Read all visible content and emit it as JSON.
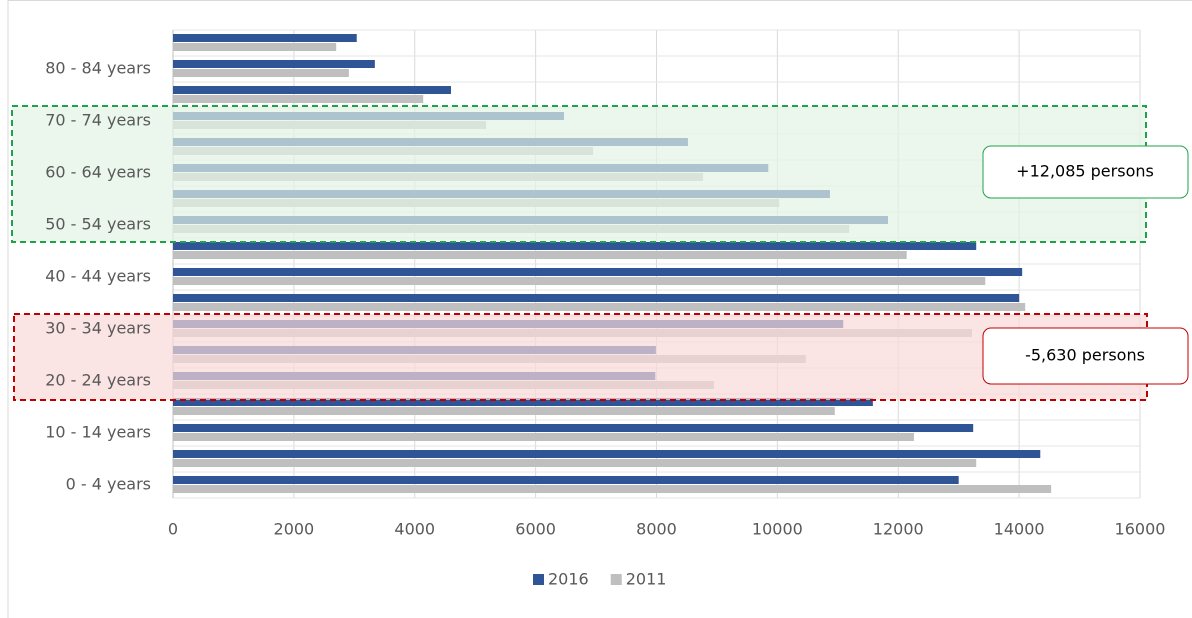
{
  "chart_data": {
    "type": "bar",
    "orientation": "horizontal",
    "categories": [
      "0 - 4 years",
      null,
      "10 - 14 years",
      null,
      "20 - 24 years",
      null,
      "30 - 34 years",
      null,
      "40 - 44 years",
      null,
      "50 - 54 years",
      null,
      "60 - 64 years",
      null,
      "70 - 74 years",
      null,
      "80 - 84 years",
      null
    ],
    "series": [
      {
        "name": "2016",
        "color": "#2f5597",
        "values": [
          13000,
          14350,
          13240,
          11580,
          7980,
          7990,
          11090,
          14000,
          14050,
          13290,
          11830,
          10870,
          9850,
          8520,
          6470,
          4600,
          3340,
          3040
        ]
      },
      {
        "name": "2011",
        "color": "#bfbfbf",
        "values": [
          14530,
          13290,
          12260,
          10950,
          8950,
          10470,
          13220,
          14100,
          13440,
          12140,
          11190,
          10030,
          8770,
          6950,
          5180,
          4140,
          2910,
          2700
        ]
      }
    ],
    "xlim": [
      0,
      16000
    ],
    "xticks": [
      0,
      2000,
      4000,
      6000,
      8000,
      10000,
      12000,
      14000,
      16000
    ],
    "grid": true,
    "legend": "bottom",
    "annotations": [
      "+12,085 persons",
      "-5,630 persons"
    ]
  }
}
